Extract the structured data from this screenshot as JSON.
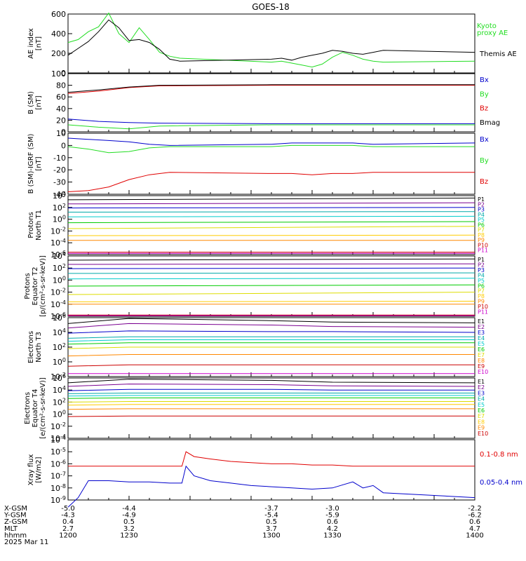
{
  "title": "GOES-18",
  "colors": {
    "black": "#000000",
    "red": "#e00000",
    "green": "#22dd22",
    "blue": "#0000cc",
    "purple": "#7a0090",
    "navy": "#101070",
    "cyan": "#00cccc",
    "teal": "#00aaaa",
    "lime": "#00cc00",
    "yellow": "#dddd00",
    "gold": "#ffcc00",
    "orange": "#ff8800",
    "darkred": "#cc0000",
    "magenta": "#cc00cc"
  },
  "chart_data": [
    {
      "id": "ae",
      "type": "line",
      "ylabel": [
        "AE index",
        "[nT]"
      ],
      "ylim": [
        0,
        600
      ],
      "ticks": [
        "600",
        "400",
        "200",
        "0"
      ],
      "tickvals": [
        600,
        400,
        200,
        0
      ],
      "x": [
        1200,
        1205,
        1210,
        1215,
        1220,
        1225,
        1230,
        1235,
        1240,
        1245,
        1250,
        1255,
        1300,
        1305,
        1310,
        1315,
        1320,
        1325,
        1330,
        1335,
        1340,
        1345,
        1350,
        1355,
        1400
      ],
      "series": [
        {
          "name": "Kyoto proxy AE",
          "label_lines": [
            "Kyoto",
            "proxy AE"
          ],
          "color": "#22dd22",
          "values": [
            310,
            340,
            420,
            470,
            610,
            400,
            310,
            460,
            340,
            210,
            170,
            150,
            110,
            120,
            100,
            80,
            60,
            90,
            160,
            210,
            180,
            140,
            120,
            110,
            120
          ]
        },
        {
          "name": "Themis AE",
          "label_lines": [
            "Themis AE"
          ],
          "color": "#000000",
          "values": [
            180,
            250,
            320,
            420,
            540,
            460,
            330,
            340,
            310,
            240,
            140,
            120,
            140,
            150,
            130,
            160,
            180,
            200,
            230,
            220,
            200,
            190,
            210,
            230,
            210
          ]
        }
      ]
    },
    {
      "id": "bsm",
      "type": "line",
      "ylabel": [
        "B (SM)",
        "[nT]"
      ],
      "ylim": [
        0,
        100
      ],
      "ticks": [
        "100",
        "80",
        "60",
        "40",
        "20",
        "0"
      ],
      "tickvals": [
        100,
        80,
        60,
        40,
        20,
        0
      ],
      "x": [
        1200,
        1215,
        1230,
        1245,
        1300,
        1315,
        1330,
        1345,
        1400
      ],
      "series": [
        {
          "name": "Bx",
          "color": "#0000cc",
          "values": [
            22,
            18,
            16,
            15,
            14,
            14,
            14,
            14,
            14
          ]
        },
        {
          "name": "By",
          "color": "#22dd22",
          "values": [
            12,
            8,
            5,
            10,
            12,
            12,
            12,
            12,
            12
          ]
        },
        {
          "name": "Bz",
          "color": "#e00000",
          "values": [
            66,
            70,
            76,
            79,
            80,
            80,
            80,
            80,
            80
          ]
        },
        {
          "name": "Bmag",
          "color": "#000000",
          "values": [
            68,
            72,
            77,
            80,
            81,
            81,
            81,
            81,
            81
          ]
        }
      ]
    },
    {
      "id": "bigrf",
      "type": "line",
      "ylabel": [
        "B (SM)-IGRF (SM)",
        "[nT]"
      ],
      "ylim": [
        -40,
        10
      ],
      "ticks": [
        "10",
        "0",
        "-10",
        "-20",
        "-30",
        "-40"
      ],
      "tickvals": [
        10,
        0,
        -10,
        -20,
        -30,
        -40
      ],
      "x": [
        1200,
        1210,
        1220,
        1230,
        1240,
        1250,
        1300,
        1310,
        1320,
        1330,
        1340,
        1350,
        1400
      ],
      "series": [
        {
          "name": "Bx",
          "color": "#0000cc",
          "values": [
            6,
            5,
            4,
            3,
            1,
            0,
            1,
            2,
            2,
            2,
            2,
            1,
            2
          ]
        },
        {
          "name": "By",
          "color": "#22dd22",
          "values": [
            -1,
            -3,
            -6,
            -5,
            -2,
            -1,
            -1,
            0,
            0,
            0,
            0,
            -1,
            -1
          ]
        },
        {
          "name": "Bz",
          "color": "#e00000",
          "values": [
            -38,
            -37,
            -34,
            -28,
            -24,
            -22,
            -23,
            -23,
            -24,
            -23,
            -23,
            -22,
            -22
          ]
        }
      ]
    },
    {
      "id": "protons_t1",
      "type": "line",
      "scale": "log",
      "ylabel": [
        "Protons",
        "North T1"
      ],
      "ylim": [
        -6,
        4
      ],
      "ticks": [
        "10^4",
        "10^2",
        "10^0",
        "10^-2",
        "10^-4",
        "10^-6"
      ],
      "tickvals": [
        4,
        2,
        0,
        -2,
        -4,
        -6
      ],
      "x": [
        1200,
        1400
      ],
      "series": [
        {
          "name": "P1",
          "color": "#000000",
          "values": [
            3.3,
            3.6
          ]
        },
        {
          "name": "P2",
          "color": "#7a0090",
          "values": [
            2.6,
            2.8
          ]
        },
        {
          "name": "P3",
          "color": "#0000cc",
          "values": [
            1.9,
            2.0
          ]
        },
        {
          "name": "P4",
          "color": "#00aaaa",
          "values": [
            1.2,
            1.3
          ]
        },
        {
          "name": "P5",
          "color": "#00cccc",
          "values": [
            0.4,
            0.5
          ]
        },
        {
          "name": "P6",
          "color": "#00cc00",
          "values": [
            -0.6,
            -0.4
          ]
        },
        {
          "name": "P7",
          "color": "#dddd00",
          "values": [
            -1.6,
            -1.2
          ]
        },
        {
          "name": "P8",
          "color": "#ffcc00",
          "values": [
            -2.8,
            -2.7
          ]
        },
        {
          "name": "P9",
          "color": "#ff8800",
          "values": [
            -3.6,
            -3.6
          ]
        },
        {
          "name": "P10",
          "color": "#cc0000",
          "values": [
            -5.6,
            -5.6
          ]
        },
        {
          "name": "P11",
          "color": "#cc00cc",
          "values": [
            -5.8,
            -5.8
          ]
        }
      ]
    },
    {
      "id": "protons_t2",
      "type": "line",
      "scale": "log",
      "ylabel": [
        "Protons",
        "Equator T2",
        "[p/(cm²-s-sr-keV)]"
      ],
      "ylim": [
        -6,
        4
      ],
      "ticks": [
        "10^4",
        "10^2",
        "10^0",
        "10^-2",
        "10^-4",
        "10^-6"
      ],
      "tickvals": [
        4,
        2,
        0,
        -2,
        -4,
        -6
      ],
      "x": [
        1200,
        1400
      ],
      "series": [
        {
          "name": "P1",
          "color": "#000000",
          "values": [
            3.3,
            3.5
          ]
        },
        {
          "name": "P2",
          "color": "#7a0090",
          "values": [
            2.6,
            2.7
          ]
        },
        {
          "name": "P3",
          "color": "#0000cc",
          "values": [
            1.9,
            2.0
          ]
        },
        {
          "name": "P4",
          "color": "#00aaaa",
          "values": [
            1.1,
            1.2
          ]
        },
        {
          "name": "P5",
          "color": "#00cccc",
          "values": [
            0.2,
            0.3
          ]
        },
        {
          "name": "P6",
          "color": "#00cc00",
          "values": [
            -1.0,
            -0.8
          ]
        },
        {
          "name": "P7",
          "color": "#dddd00",
          "values": [
            -2.4,
            -2.0
          ]
        },
        {
          "name": "P8",
          "color": "#ffcc00",
          "values": [
            -3.6,
            -3.5
          ]
        },
        {
          "name": "P9",
          "color": "#ff8800",
          "values": [
            -4.0,
            -4.0
          ]
        },
        {
          "name": "P10",
          "color": "#cc0000",
          "values": [
            -5.8,
            -5.8
          ]
        },
        {
          "name": "P11",
          "color": "#cc00cc",
          "values": [
            -5.9,
            -5.9
          ]
        }
      ]
    },
    {
      "id": "electrons_t3",
      "type": "line",
      "scale": "log",
      "ylabel": [
        "Electrons",
        "North T3"
      ],
      "ylim": [
        -2,
        6
      ],
      "ticks": [
        "10^6",
        "10^4",
        "10^2",
        "10^0",
        "10^-2"
      ],
      "tickvals": [
        6,
        4,
        2,
        0,
        -2
      ],
      "x": [
        1200,
        1230,
        1300,
        1330,
        1400
      ],
      "series": [
        {
          "name": "E1",
          "color": "#000000",
          "values": [
            5.2,
            5.9,
            5.6,
            5.4,
            5.3
          ]
        },
        {
          "name": "E2",
          "color": "#7a0090",
          "values": [
            4.6,
            5.2,
            5.0,
            4.8,
            4.7
          ]
        },
        {
          "name": "E3",
          "color": "#0000cc",
          "values": [
            3.9,
            4.2,
            4.1,
            4.1,
            4.0
          ]
        },
        {
          "name": "E4",
          "color": "#00aaaa",
          "values": [
            3.2,
            3.4,
            3.4,
            3.4,
            3.4
          ]
        },
        {
          "name": "E5",
          "color": "#00cccc",
          "values": [
            2.8,
            3.0,
            3.0,
            3.0,
            3.0
          ]
        },
        {
          "name": "E6",
          "color": "#00cc00",
          "values": [
            2.4,
            2.6,
            2.6,
            2.6,
            2.6
          ]
        },
        {
          "name": "E7",
          "color": "#dddd00",
          "values": [
            1.8,
            2.0,
            2.0,
            2.0,
            2.0
          ]
        },
        {
          "name": "E8",
          "color": "#ff8800",
          "values": [
            0.8,
            1.0,
            1.0,
            1.0,
            1.0
          ]
        },
        {
          "name": "E9",
          "color": "#cc0000",
          "values": [
            -0.6,
            -0.4,
            -0.4,
            -0.4,
            -0.4
          ]
        },
        {
          "name": "E10",
          "color": "#cc00cc",
          "values": [
            -1.6,
            -1.6,
            -1.6,
            -1.6,
            -1.6
          ]
        }
      ]
    },
    {
      "id": "electrons_t4",
      "type": "line",
      "scale": "log",
      "ylabel": [
        "Electrons",
        "Equator T4",
        "[e/(cm²-s-sr-keV)]"
      ],
      "ylim": [
        -4,
        6
      ],
      "ticks": [
        "10^6",
        "10^4",
        "10^2",
        "10^0",
        "10^-2",
        "10^-4"
      ],
      "tickvals": [
        6,
        4,
        2,
        0,
        -2,
        -4
      ],
      "x": [
        1200,
        1230,
        1300,
        1330,
        1400
      ],
      "series": [
        {
          "name": "E1",
          "color": "#000000",
          "values": [
            5.2,
            5.8,
            5.6,
            5.3,
            5.2
          ]
        },
        {
          "name": "E2",
          "color": "#7a0090",
          "values": [
            4.6,
            5.0,
            4.9,
            4.7,
            4.6
          ]
        },
        {
          "name": "E3",
          "color": "#0000cc",
          "values": [
            3.9,
            4.1,
            4.1,
            4.0,
            4.0
          ]
        },
        {
          "name": "E4",
          "color": "#00aaaa",
          "values": [
            3.4,
            3.5,
            3.5,
            3.5,
            3.5
          ]
        },
        {
          "name": "E5",
          "color": "#00cccc",
          "values": [
            3.0,
            3.1,
            3.1,
            3.1,
            3.1
          ]
        },
        {
          "name": "E6",
          "color": "#00cc00",
          "values": [
            2.6,
            2.7,
            2.7,
            2.7,
            2.7
          ]
        },
        {
          "name": "E7",
          "color": "#dddd00",
          "values": [
            2.0,
            2.1,
            2.1,
            2.1,
            2.1
          ]
        },
        {
          "name": "E8",
          "color": "#ffcc00",
          "values": [
            1.5,
            1.6,
            1.6,
            1.6,
            1.6
          ]
        },
        {
          "name": "E9",
          "color": "#ff8800",
          "values": [
            0.8,
            0.9,
            0.9,
            0.9,
            0.9
          ]
        },
        {
          "name": "E10",
          "color": "#cc0000",
          "values": [
            -0.4,
            -0.3,
            -0.3,
            -0.3,
            -0.3
          ]
        }
      ]
    },
    {
      "id": "xray",
      "type": "line",
      "scale": "log",
      "ylabel": [
        "Xray flux",
        "[W/m2]"
      ],
      "ylim": [
        -9,
        -4
      ],
      "ticks": [
        "10^-4",
        "10^-5",
        "10^-6",
        "10^-7",
        "10^-8",
        "10^-9"
      ],
      "tickvals": [
        -4,
        -5,
        -6,
        -7,
        -8,
        -9
      ],
      "x": [
        1200,
        1205,
        1210,
        1220,
        1230,
        1240,
        1250,
        1256,
        1258,
        1262,
        1270,
        1280,
        1290,
        1300,
        1310,
        1320,
        1330,
        1340,
        1345,
        1350,
        1355,
        1400
      ],
      "series": [
        {
          "name": "0.1-0.8 nm",
          "color": "#e00000",
          "values": [
            -6.2,
            -6.2,
            -6.2,
            -6.2,
            -6.2,
            -6.2,
            -6.2,
            -6.2,
            -5.0,
            -5.4,
            -5.6,
            -5.8,
            -5.9,
            -6.0,
            -6.0,
            -6.1,
            -6.1,
            -6.2,
            -6.2,
            -6.2,
            -6.2,
            -6.2
          ]
        },
        {
          "name": "0.05-0.4 nm",
          "color": "#0000cc",
          "values": [
            -9.6,
            -8.8,
            -7.4,
            -7.4,
            -7.5,
            -7.5,
            -7.6,
            -7.6,
            -6.2,
            -7.0,
            -7.4,
            -7.6,
            -7.8,
            -7.9,
            -8.0,
            -8.1,
            -8.0,
            -7.5,
            -8.0,
            -7.8,
            -8.4,
            -8.8
          ]
        }
      ]
    }
  ],
  "xaxis": {
    "xlim": [
      1200,
      1400
    ],
    "rows": [
      {
        "label": "X-GSM",
        "values": [
          "-5.0",
          "-4.4",
          "-3.7",
          "-3.0",
          "-2.2"
        ]
      },
      {
        "label": "Y-GSM",
        "values": [
          "-4.3",
          "-4.9",
          "-5.4",
          "-5.9",
          "-6.2"
        ]
      },
      {
        "label": "Z-GSM",
        "values": [
          "0.4",
          "0.5",
          "0.5",
          "0.6",
          "0.6"
        ]
      },
      {
        "label": "MLT",
        "values": [
          "2.7",
          "3.2",
          "3.7",
          "4.2",
          "4.7"
        ]
      },
      {
        "label": "hhmm",
        "values": [
          "1200",
          "1230",
          "1300",
          "1330",
          "1400"
        ]
      }
    ],
    "date": "2025 Mar 11"
  }
}
